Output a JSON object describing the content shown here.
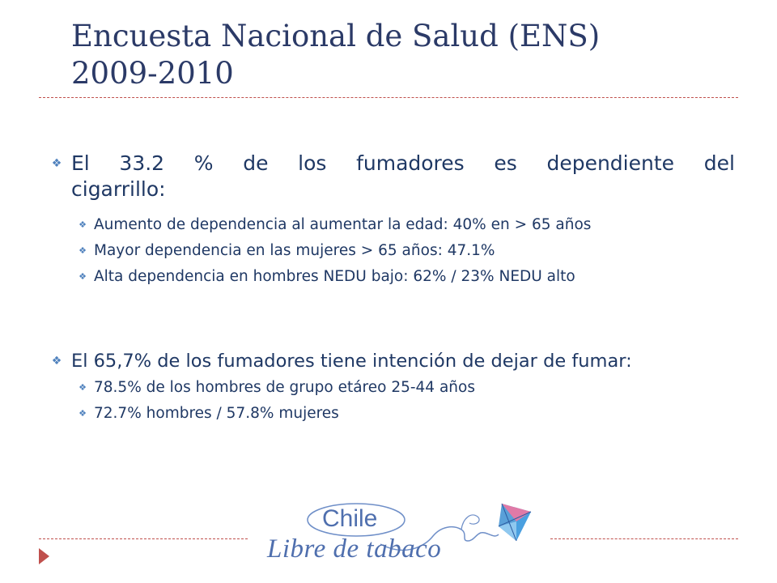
{
  "title": {
    "line1": "Encuesta Nacional de Salud (ENS)",
    "line2": "2009-2010"
  },
  "bullets": [
    {
      "words_line1": [
        "El",
        "33.2",
        "%",
        "de",
        "los",
        "fumadores",
        "es",
        "dependiente",
        "del"
      ],
      "line2": "cigarrillo:",
      "subs": [
        "Aumento de dependencia al aumentar la edad: 40% en > 65 años",
        "Mayor dependencia en las mujeres > 65 años: 47.1%",
        "Alta dependencia en hombres NEDU bajo: 62% / 23% NEDU alto"
      ]
    },
    {
      "text": "El 65,7% de los fumadores tiene intención de dejar de fumar:",
      "subs": [
        "78.5% de los hombres de grupo etáreo 25-44 años",
        "72.7% hombres / 57.8% mujeres"
      ]
    }
  ],
  "logo": {
    "line1": "Chile",
    "line2": "Libre de tabaco"
  },
  "colors": {
    "title": "#2b3a67",
    "body": "#1f3864",
    "bullet": "#4f81bd",
    "accent": "#c0504d"
  }
}
